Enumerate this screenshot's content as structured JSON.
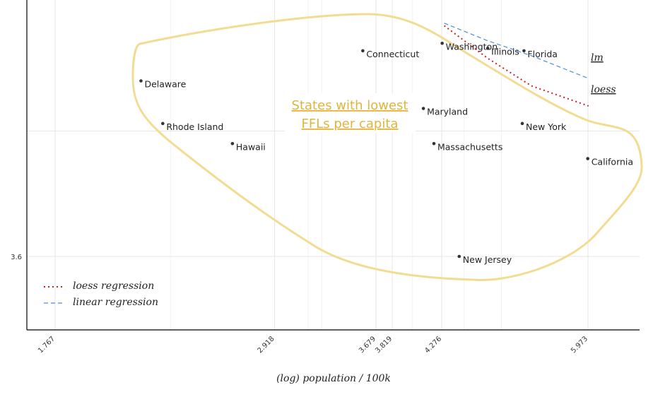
{
  "chart_data": {
    "type": "scatter",
    "title": "",
    "xlabel": "(log) population / 100k",
    "ylabel": "",
    "x_scale": "log",
    "y_tick_labels": [
      3.6
    ],
    "x_ticks": [
      1.767,
      2.918,
      3.679,
      3.819,
      4.276,
      5.973
    ],
    "x_tick_labels": [
      "1.767",
      "2.918",
      "3.679",
      "3.819",
      "4.276",
      "5.973"
    ],
    "points": [
      {
        "label": "Washington",
        "x": 4.28,
        "y": 4.45
      },
      {
        "label": "Illinois",
        "x": 4.75,
        "y": 4.43
      },
      {
        "label": "Florida",
        "x": 5.16,
        "y": 4.42
      },
      {
        "label": "Connecticut",
        "x": 3.57,
        "y": 4.42
      },
      {
        "label": "Delaware",
        "x": 2.15,
        "y": 4.3
      },
      {
        "label": "Maryland",
        "x": 4.1,
        "y": 4.19
      },
      {
        "label": "Rhode Island",
        "x": 2.26,
        "y": 4.13
      },
      {
        "label": "New York",
        "x": 5.14,
        "y": 4.13
      },
      {
        "label": "Hawaii",
        "x": 2.65,
        "y": 4.05
      },
      {
        "label": "Massachusetts",
        "x": 4.2,
        "y": 4.05
      },
      {
        "label": "California",
        "x": 5.97,
        "y": 3.99
      },
      {
        "label": "New Jersey",
        "x": 4.45,
        "y": 3.6
      }
    ],
    "series": [
      {
        "name": "loess regression",
        "points": [
          [
            4.3,
            4.52
          ],
          [
            4.75,
            4.39
          ],
          [
            5.25,
            4.28
          ],
          [
            5.98,
            4.2
          ]
        ]
      },
      {
        "name": "linear regression",
        "points": [
          [
            4.3,
            4.53
          ],
          [
            4.75,
            4.46
          ],
          [
            5.25,
            4.4
          ],
          [
            5.98,
            4.31
          ]
        ]
      }
    ],
    "line_labels": [
      "lm",
      "loess"
    ],
    "annotation": [
      "States with lowest",
      "FFLs per capita"
    ],
    "legend": [
      "loess regression",
      "linear regression"
    ],
    "legend_position": "bottom-left",
    "grid": true
  },
  "colors": {
    "loess": "#cc1f1f",
    "linear": "#4a8fd4",
    "highlight": "#f1dc92",
    "annotation": "#e0b53a",
    "point": "#333333",
    "grid": "#e6e6e6"
  }
}
